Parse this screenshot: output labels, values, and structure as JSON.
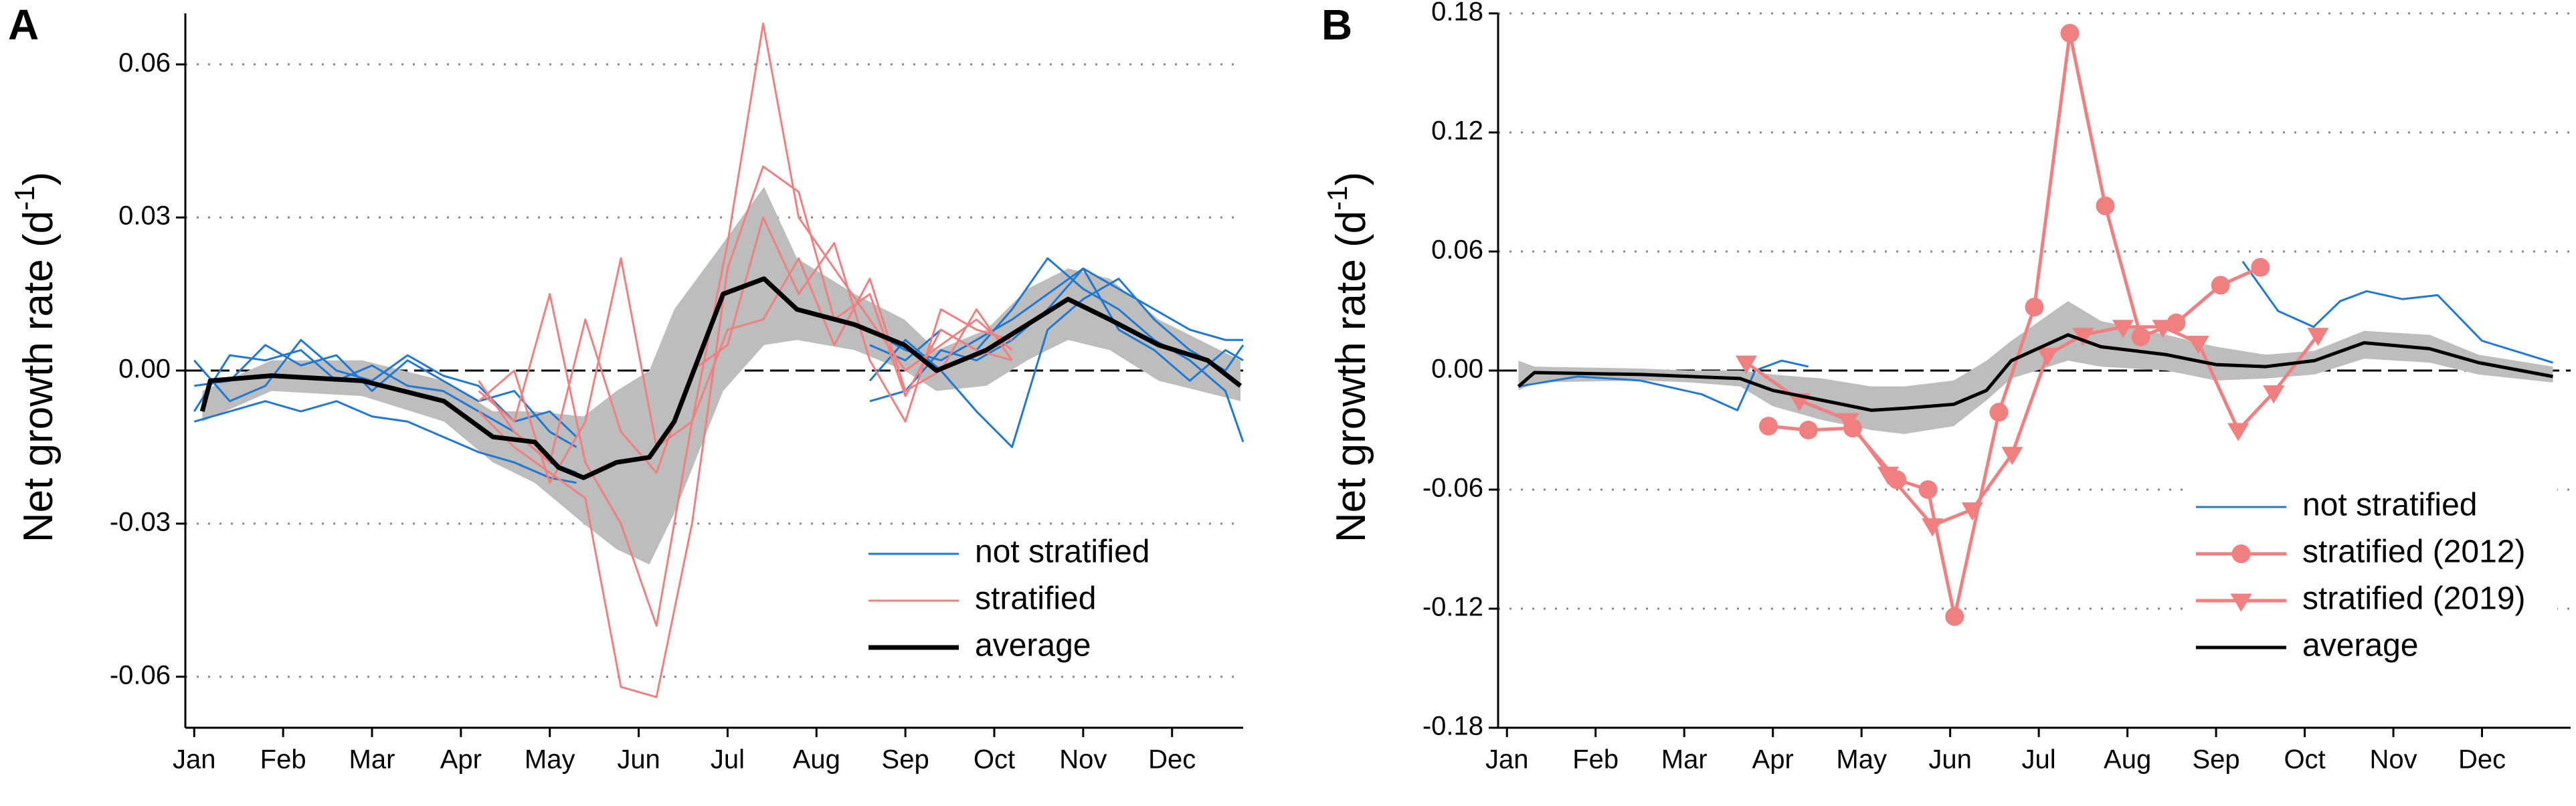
{
  "chart_data": [
    {
      "type": "line",
      "panel": "A",
      "ylabel": {
        "text": "Net growth rate (d",
        "sup": "-1",
        "close": ")"
      },
      "xlim": [
        -0.1,
        11.8
      ],
      "ylim": [
        -0.07,
        0.07
      ],
      "xticks": [
        {
          "value": 0,
          "label": "Jan"
        },
        {
          "value": 1,
          "label": "Feb"
        },
        {
          "value": 2,
          "label": "Mar"
        },
        {
          "value": 3,
          "label": "Apr"
        },
        {
          "value": 4,
          "label": "May"
        },
        {
          "value": 5,
          "label": "Jun"
        },
        {
          "value": 6,
          "label": "Jul"
        },
        {
          "value": 7,
          "label": "Aug"
        },
        {
          "value": 8,
          "label": "Sep"
        },
        {
          "value": 9,
          "label": "Oct"
        },
        {
          "value": 10,
          "label": "Nov"
        },
        {
          "value": 11,
          "label": "Dec"
        }
      ],
      "yticks": [
        -0.06,
        -0.03,
        {
          "value": 0,
          "label": "0.00"
        },
        0.03,
        0.06
      ],
      "grid": true,
      "legend": "lower right",
      "band": {
        "color": "#bdbdbd",
        "x": [
          0.09,
          0.87,
          1.89,
          2.81,
          3.36,
          3.83,
          4.38,
          4.75,
          5.12,
          5.4,
          5.95,
          6.41,
          6.78,
          7.43,
          7.99,
          8.35,
          8.91,
          9.37,
          9.83,
          10.3,
          10.85,
          11.77
        ],
        "upper": [
          -0.004,
          0.002,
          0.002,
          -0.002,
          -0.008,
          -0.008,
          -0.009,
          -0.004,
          0.0,
          0.012,
          0.025,
          0.036,
          0.022,
          0.015,
          0.01,
          0.004,
          0.008,
          0.016,
          0.02,
          0.018,
          0.01,
          0.002
        ],
        "lower": [
          -0.01,
          -0.004,
          -0.005,
          -0.01,
          -0.018,
          -0.022,
          -0.03,
          -0.035,
          -0.038,
          -0.028,
          -0.004,
          0.005,
          0.006,
          0.004,
          0.0,
          -0.004,
          -0.003,
          0.002,
          0.006,
          0.004,
          -0.002,
          -0.006
        ]
      },
      "series": [
        {
          "name": "not stratified",
          "color": "#1f78d1",
          "width": 3,
          "lines": [
            {
              "x": [
                0,
                0.4,
                0.8,
                1.2,
                1.6,
                2.0,
                2.4,
                2.8,
                3.2,
                3.6,
                4.0,
                4.3,
                6.0,
                7.6,
                8.0,
                8.4,
                8.8,
                9.2,
                9.6,
                10.0,
                10.4,
                10.8,
                11.2,
                11.6,
                11.8
              ],
              "values": [
                -0.008,
                0.003,
                0.002,
                0.004,
                -0.002,
                0.001,
                -0.003,
                -0.004,
                -0.008,
                -0.012,
                -0.018,
                -0.02,
                null,
                0.005,
                0.002,
                0.008,
                0.004,
                0.012,
                0.022,
                0.016,
                0.012,
                0.006,
                0.002,
                -0.004,
                -0.014
              ]
            },
            {
              "x": [
                0,
                0.4,
                0.8,
                1.2,
                1.6,
                2.0,
                2.4,
                2.8,
                3.2,
                3.6,
                4.0,
                4.3,
                6.0,
                7.6,
                8.0,
                8.4,
                8.8,
                9.2,
                9.6,
                10.0,
                10.4,
                10.8,
                11.2,
                11.6,
                11.8
              ],
              "values": [
                -0.003,
                -0.002,
                0.005,
                0.001,
                0.003,
                -0.004,
                0.002,
                -0.002,
                -0.006,
                -0.004,
                -0.012,
                -0.015,
                null,
                -0.002,
                0.006,
                0.0,
                -0.008,
                -0.015,
                0.008,
                0.014,
                0.018,
                0.01,
                0.004,
                0.0,
                0.005
              ]
            },
            {
              "x": [
                0,
                0.4,
                0.8,
                1.2,
                1.6,
                2.0,
                2.4,
                2.8,
                3.2,
                3.6,
                4.0,
                4.3,
                6.0,
                7.6,
                8.0,
                8.4,
                8.8,
                9.2,
                9.6,
                10.0,
                10.4,
                10.8,
                11.2,
                11.6,
                11.8
              ],
              "values": [
                0.002,
                -0.006,
                -0.003,
                0.006,
                0.0,
                -0.002,
                0.003,
                -0.001,
                -0.003,
                -0.01,
                -0.008,
                -0.013,
                null,
                0.008,
                0.004,
                0.002,
                0.006,
                0.01,
                0.015,
                0.02,
                0.008,
                0.004,
                -0.002,
                0.004,
                0.002
              ]
            },
            {
              "x": [
                0,
                0.4,
                0.8,
                1.2,
                1.6,
                2.0,
                2.4,
                2.8,
                3.2,
                3.6,
                4.0,
                4.3,
                6.0,
                7.6,
                8.0,
                8.4,
                8.8,
                9.2,
                9.6,
                10.0,
                10.4,
                10.8,
                11.2,
                11.6,
                11.8
              ],
              "values": [
                -0.01,
                -0.008,
                -0.006,
                -0.008,
                -0.006,
                -0.009,
                -0.01,
                -0.013,
                -0.016,
                -0.018,
                -0.021,
                -0.022,
                null,
                -0.006,
                -0.004,
                0.004,
                0.002,
                0.006,
                0.012,
                0.02,
                0.016,
                0.012,
                0.008,
                0.006,
                0.006
              ]
            }
          ]
        },
        {
          "name": "stratified",
          "color": "#f08080",
          "width": 3,
          "lines": [
            {
              "x": [
                3.2,
                3.6,
                4.0,
                4.4,
                4.8,
                5.2,
                5.6,
                6.0,
                6.4,
                6.8,
                7.2,
                7.6,
                8.0,
                8.4,
                8.8,
                9.2
              ],
              "values": [
                -0.004,
                -0.01,
                0.015,
                -0.018,
                -0.03,
                -0.05,
                -0.01,
                0.025,
                0.068,
                0.03,
                0.02,
                0.01,
                0.0,
                0.005,
                0.01,
                0.004
              ]
            },
            {
              "x": [
                3.2,
                3.6,
                4.0,
                4.4,
                4.8,
                5.2,
                5.6,
                6.0,
                6.4,
                6.8,
                7.2,
                7.6,
                8.0,
                8.4,
                8.8,
                9.2
              ],
              "values": [
                -0.008,
                -0.015,
                -0.02,
                -0.025,
                -0.062,
                -0.064,
                -0.03,
                0.02,
                0.04,
                0.035,
                0.01,
                0.015,
                -0.005,
                0.008,
                0.004,
                0.002
              ]
            },
            {
              "x": [
                3.2,
                3.6,
                4.0,
                4.4,
                4.8,
                5.2,
                5.6,
                6.0,
                6.4,
                6.8,
                7.2,
                7.6,
                8.0,
                8.4,
                8.8,
                9.2
              ],
              "values": [
                -0.002,
                -0.012,
                -0.018,
                0.01,
                -0.012,
                -0.02,
                0.0,
                0.005,
                0.03,
                0.015,
                0.025,
                0.002,
                -0.01,
                0.012,
                0.008,
                0.006
              ]
            },
            {
              "x": [
                3.2,
                3.6,
                4.0,
                4.4,
                4.8,
                5.2,
                5.6,
                6.0,
                6.4,
                6.8,
                7.2,
                7.6,
                8.0,
                8.4,
                8.8,
                9.2
              ],
              "values": [
                -0.006,
                0.0,
                -0.022,
                -0.01,
                0.022,
                -0.015,
                -0.01,
                0.008,
                0.01,
                0.022,
                0.005,
                0.018,
                -0.004,
                0.0,
                0.012,
                0.002
              ]
            }
          ]
        },
        {
          "name": "average",
          "color": "#000000",
          "width": 7,
          "x": [
            0.09,
            0.18,
            0.87,
            1.89,
            2.81,
            3.36,
            3.83,
            4.1,
            4.38,
            4.75,
            5.12,
            5.4,
            5.95,
            6.41,
            6.78,
            7.43,
            7.99,
            8.35,
            8.91,
            9.37,
            9.83,
            10.3,
            10.85,
            11.4,
            11.77
          ],
          "values": [
            -0.008,
            -0.002,
            -0.001,
            -0.002,
            -0.006,
            -0.013,
            -0.014,
            -0.019,
            -0.021,
            -0.018,
            -0.017,
            -0.01,
            0.015,
            0.018,
            0.012,
            0.009,
            0.005,
            0.0,
            0.004,
            0.009,
            0.014,
            0.01,
            0.005,
            0.002,
            -0.003
          ]
        }
      ]
    },
    {
      "type": "line",
      "panel": "B",
      "ylabel": {
        "text": "Net growth rate (d",
        "sup": "-1",
        "close": ")"
      },
      "xlim": [
        -0.1,
        12
      ],
      "ylim": [
        -0.18,
        0.18
      ],
      "xticks": [
        {
          "value": 0,
          "label": "Jan"
        },
        {
          "value": 1,
          "label": "Feb"
        },
        {
          "value": 2,
          "label": "Mar"
        },
        {
          "value": 3,
          "label": "Apr"
        },
        {
          "value": 4,
          "label": "May"
        },
        {
          "value": 5,
          "label": "Jun"
        },
        {
          "value": 6,
          "label": "Jul"
        },
        {
          "value": 7,
          "label": "Aug"
        },
        {
          "value": 8,
          "label": "Sep"
        },
        {
          "value": 9,
          "label": "Oct"
        },
        {
          "value": 10,
          "label": "Nov"
        },
        {
          "value": 11,
          "label": "Dec"
        }
      ],
      "yticks": [
        -0.18,
        -0.12,
        -0.06,
        {
          "value": 0,
          "label": "0.00"
        },
        0.06,
        0.12,
        0.18
      ],
      "grid": true,
      "legend": "lower right",
      "band": {
        "color": "#bdbdbd",
        "x": [
          0.13,
          0.31,
          1.52,
          2.07,
          2.63,
          3.0,
          3.56,
          4.11,
          4.48,
          5.04,
          5.41,
          5.69,
          6.33,
          6.7,
          7.44,
          8.0,
          8.56,
          9.11,
          9.67,
          10.41,
          10.96,
          11.8
        ],
        "upper": [
          0.005,
          0.002,
          0.001,
          0.0,
          0.0,
          -0.002,
          -0.004,
          -0.008,
          -0.008,
          -0.005,
          0.005,
          0.015,
          0.035,
          0.025,
          0.018,
          0.012,
          0.008,
          0.01,
          0.02,
          0.018,
          0.008,
          0.002
        ],
        "lower": [
          -0.01,
          -0.006,
          -0.005,
          -0.006,
          -0.008,
          -0.018,
          -0.025,
          -0.03,
          -0.032,
          -0.028,
          -0.015,
          -0.004,
          0.005,
          0.002,
          0.0,
          -0.005,
          -0.004,
          -0.002,
          0.006,
          0.004,
          -0.002,
          -0.006
        ]
      },
      "series": [
        {
          "name": "not stratified",
          "color": "#1f78d1",
          "width": 3,
          "x": [
            0.13,
            0.8,
            1.5,
            2.2,
            2.6,
            2.8,
            3.1,
            3.4,
            5.0,
            8.3,
            8.7,
            9.1,
            9.4,
            9.7,
            10.1,
            10.5,
            11.0,
            11.8
          ],
          "values": [
            -0.008,
            -0.003,
            -0.005,
            -0.012,
            -0.02,
            0.0,
            0.005,
            0.002,
            null,
            0.055,
            0.03,
            0.022,
            0.035,
            0.04,
            0.036,
            0.038,
            0.015,
            0.004
          ]
        },
        {
          "name": "stratified (2012)",
          "color": "#f08080",
          "width": 5,
          "marker": "circle",
          "x": [
            2.95,
            3.4,
            3.9,
            4.4,
            4.75,
            5.05,
            5.55,
            5.95,
            6.35,
            6.75,
            7.15,
            7.55,
            8.05,
            8.5
          ],
          "values": [
            -0.028,
            -0.03,
            -0.029,
            -0.055,
            -0.06,
            -0.124,
            -0.021,
            0.032,
            0.17,
            0.083,
            0.017,
            0.024,
            0.043,
            0.052
          ]
        },
        {
          "name": "stratified (2019)",
          "color": "#f08080",
          "width": 5,
          "marker": "triangle",
          "x": [
            2.7,
            3.3,
            3.85,
            4.3,
            4.8,
            5.25,
            5.7,
            6.1,
            6.5,
            6.95,
            7.4,
            7.8,
            8.25,
            8.65,
            9.15
          ],
          "values": [
            0.004,
            -0.015,
            -0.025,
            -0.052,
            -0.078,
            -0.07,
            -0.042,
            0.008,
            0.018,
            0.022,
            0.022,
            0.014,
            -0.03,
            -0.011,
            0.018
          ]
        },
        {
          "name": "average",
          "color": "#000000",
          "width": 5,
          "x": [
            0.13,
            0.31,
            1.52,
            2.07,
            2.63,
            3.0,
            3.56,
            4.11,
            4.48,
            5.04,
            5.41,
            5.69,
            6.33,
            6.7,
            7.44,
            8.0,
            8.56,
            9.11,
            9.67,
            10.41,
            10.96,
            11.8
          ],
          "values": [
            -0.008,
            -0.001,
            -0.002,
            -0.003,
            -0.004,
            -0.01,
            -0.015,
            -0.02,
            -0.019,
            -0.017,
            -0.01,
            0.005,
            0.018,
            0.012,
            0.008,
            0.003,
            0.002,
            0.005,
            0.014,
            0.011,
            0.004,
            -0.003
          ]
        }
      ]
    }
  ]
}
